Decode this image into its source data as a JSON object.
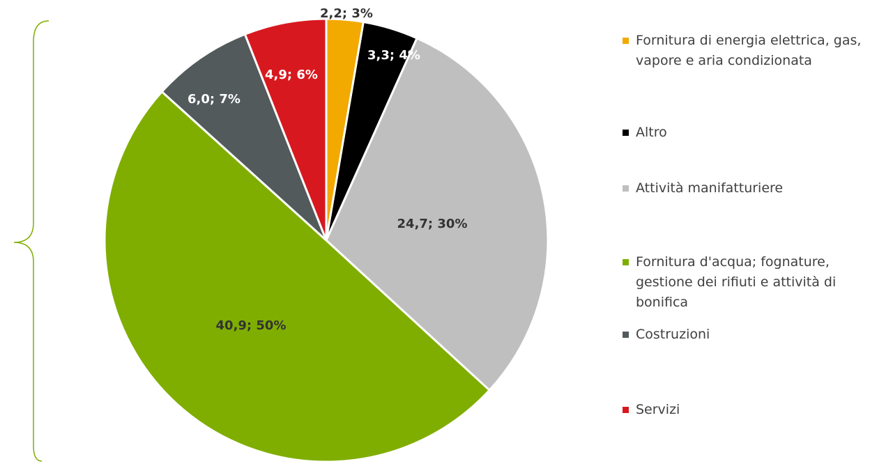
{
  "chart_data": {
    "type": "pie",
    "categories": [
      "Fornitura di energia elettrica, gas, vapore e aria condizionata",
      "Altro",
      "Attività manifatturiere",
      "Fornitura d'acqua; fognature, gestione dei rifiuti e attività di bonifica",
      "Costruzioni",
      "Servizi"
    ],
    "values": [
      2.2,
      3.3,
      24.7,
      40.9,
      6.0,
      4.9
    ],
    "value_labels": [
      "2,2; 3%",
      "3,3; 4%",
      "24,7; 30%",
      "40,9; 50%",
      "6,0; 7%",
      "4,9; 6%"
    ],
    "colors": [
      "#f2a900",
      "#000000",
      "#bfbfbf",
      "#7fae00",
      "#525a5c",
      "#d7191f"
    ],
    "legend": "right"
  }
}
